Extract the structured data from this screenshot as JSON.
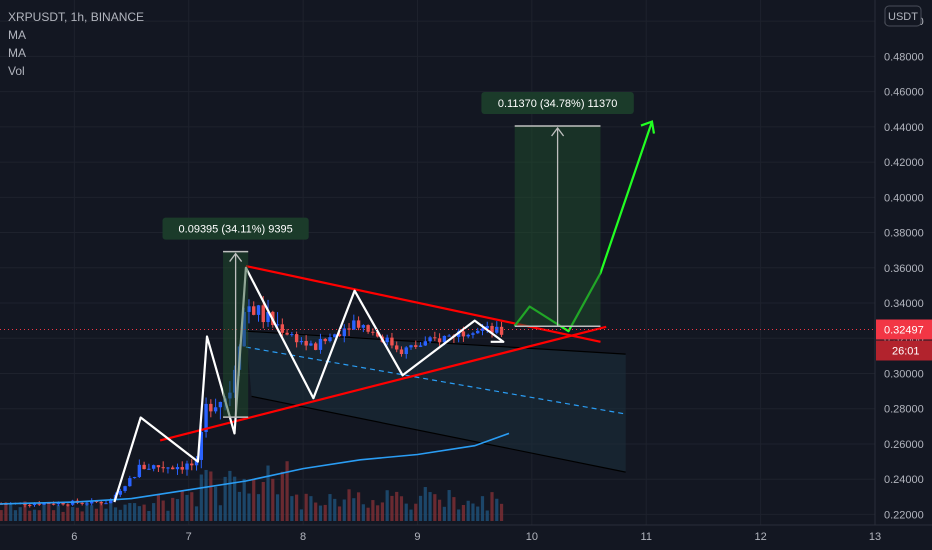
{
  "legend": {
    "title": "XRPUSDT, 1h, BINANCE",
    "indicators": [
      "MA",
      "MA",
      "Vol"
    ]
  },
  "currency_badge": "USDT",
  "current_price": {
    "value": 0.32497,
    "label": "0.32497",
    "countdown": "26:01",
    "color": "#f23645"
  },
  "colors": {
    "up": "#2962ff",
    "down": "#ef5350",
    "line_red": "#ff0000",
    "line_white": "#ffffff",
    "line_green": "#22ff22",
    "ma": "#2a9df4",
    "bg": "#131722"
  },
  "chart_data": {
    "type": "candlestick",
    "x_axis": {
      "range": [
        5.35,
        13.0
      ],
      "ticks": [
        6,
        7,
        8,
        9,
        10,
        11,
        12,
        13
      ]
    },
    "y_axis": {
      "range": [
        0.214,
        0.512
      ],
      "ticks": [
        0.22,
        0.24,
        0.26,
        0.28,
        0.3,
        0.32,
        0.34,
        0.36,
        0.38,
        0.4,
        0.42,
        0.44,
        0.46,
        0.48,
        0.5
      ],
      "tick_labels": [
        "0.22000",
        "0.24000",
        "0.26000",
        "0.28000",
        "0.30000",
        "0.32000",
        "0.34000",
        "0.36000",
        "0.38000",
        "0.40000",
        "0.42000",
        "0.44000",
        "0.46000",
        "0.48000",
        "0.50000"
      ]
    },
    "measurements": [
      {
        "label": "0.09395 (34.11%) 9395",
        "x": [
          7.3,
          7.52
        ],
        "y_from": 0.2752,
        "y_to": 0.3692
      },
      {
        "label": "0.11370 (34.78%) 11370",
        "x": [
          9.85,
          10.6
        ],
        "y_from": 0.3268,
        "y_to": 0.4405
      }
    ],
    "annotations": {
      "wedge_upper": [
        [
          7.5,
          0.361
        ],
        [
          10.6,
          0.318
        ]
      ],
      "wedge_lower": [
        [
          6.75,
          0.262
        ],
        [
          10.65,
          0.3265
        ]
      ],
      "channel_upper": [
        [
          7.5,
          0.324
        ],
        [
          10.82,
          0.311
        ]
      ],
      "channel_mid": [
        [
          7.5,
          0.315
        ],
        [
          10.82,
          0.277
        ]
      ],
      "channel_lower": [
        [
          7.55,
          0.287
        ],
        [
          10.82,
          0.244
        ]
      ],
      "zigzag_white": [
        [
          6.35,
          0.227
        ],
        [
          6.58,
          0.275
        ],
        [
          7.08,
          0.25
        ],
        [
          7.16,
          0.321
        ],
        [
          7.4,
          0.266
        ],
        [
          7.5,
          0.36
        ],
        [
          8.09,
          0.286
        ],
        [
          8.45,
          0.347
        ],
        [
          8.87,
          0.299
        ],
        [
          9.5,
          0.33
        ],
        [
          9.75,
          0.318
        ],
        [
          9.64,
          0.318
        ]
      ],
      "projection_green": [
        [
          9.85,
          0.327
        ],
        [
          9.98,
          0.338
        ],
        [
          10.32,
          0.324
        ],
        [
          10.6,
          0.357
        ],
        [
          11.05,
          0.443
        ]
      ],
      "arrow_green_tip": [
        11.05,
        0.443
      ]
    },
    "ma_line": [
      [
        5.35,
        0.226
      ],
      [
        6.0,
        0.227
      ],
      [
        6.5,
        0.229
      ],
      [
        7.0,
        0.234
      ],
      [
        7.5,
        0.239
      ],
      [
        8.0,
        0.246
      ],
      [
        8.5,
        0.251
      ],
      [
        9.0,
        0.254
      ],
      [
        9.5,
        0.259
      ],
      [
        9.8,
        0.266
      ]
    ]
  }
}
